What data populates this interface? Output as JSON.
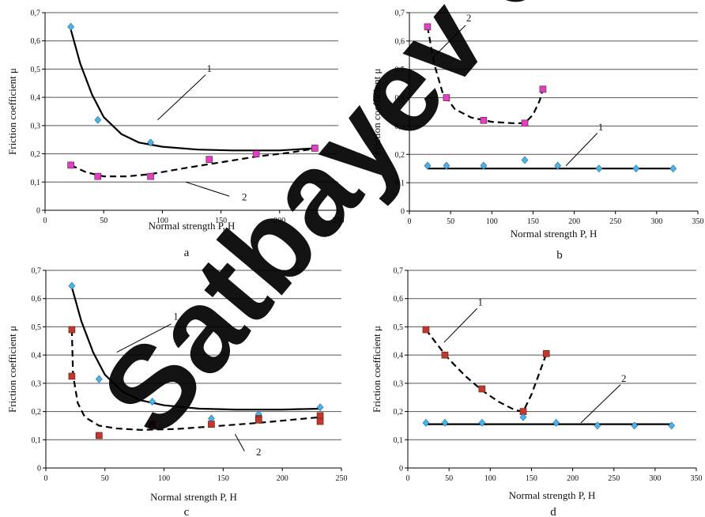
{
  "watermark": "Satbayev University",
  "chart_data": [
    {
      "type": "scatter",
      "panel": "a",
      "xlabel": "Normal strength P, H",
      "ylabel": "Friction coefficient μ",
      "xlim": [
        0,
        250
      ],
      "ylim": [
        0,
        0.7
      ],
      "xticks": [
        0,
        50,
        100,
        150,
        200,
        250
      ],
      "yticks": [
        0,
        0.1,
        0.2,
        0.3,
        0.4,
        0.5,
        0.6,
        0.7
      ],
      "ytick_labels": [
        "0",
        "0,1",
        "0,2",
        "0,3",
        "0,4",
        "0,5",
        "0,6",
        "0,7"
      ],
      "grid": "horizontal",
      "series": [
        {
          "name": "1",
          "marker": "diamond",
          "color": "#4db3e6",
          "line": "solid",
          "points": [
            [
              22,
              0.65
            ],
            [
              45,
              0.32
            ],
            [
              90,
              0.24
            ],
            [
              230,
              0.22
            ]
          ],
          "trend": [
            [
              22,
              0.64
            ],
            [
              30,
              0.52
            ],
            [
              40,
              0.41
            ],
            [
              50,
              0.33
            ],
            [
              65,
              0.27
            ],
            [
              80,
              0.24
            ],
            [
              100,
              0.225
            ],
            [
              130,
              0.215
            ],
            [
              160,
              0.212
            ],
            [
              200,
              0.212
            ],
            [
              232,
              0.22
            ]
          ]
        },
        {
          "name": "2",
          "marker": "square",
          "color": "#e040c8",
          "line": "dashed",
          "points": [
            [
              22,
              0.16
            ],
            [
              45,
              0.12
            ],
            [
              90,
              0.12
            ],
            [
              140,
              0.18
            ],
            [
              180,
              0.2
            ],
            [
              230,
              0.22
            ]
          ],
          "trend": [
            [
              22,
              0.16
            ],
            [
              35,
              0.135
            ],
            [
              50,
              0.12
            ],
            [
              70,
              0.12
            ],
            [
              90,
              0.128
            ],
            [
              120,
              0.15
            ],
            [
              150,
              0.17
            ],
            [
              180,
              0.19
            ],
            [
              210,
              0.205
            ],
            [
              232,
              0.22
            ]
          ]
        }
      ],
      "curve_labels": [
        {
          "text": "1",
          "x": 140,
          "y": 0.49,
          "lx1": 137,
          "ly1": 0.48,
          "lx2": 96,
          "ly2": 0.32
        },
        {
          "text": "2",
          "x": 170,
          "y": 0.035,
          "lx1": 157,
          "ly1": 0.05,
          "lx2": 120,
          "ly2": 0.1
        }
      ]
    },
    {
      "type": "scatter",
      "panel": "b",
      "xlabel": "Normal strength P, H",
      "ylabel": "Friction coefficient μ",
      "xlim": [
        0,
        350
      ],
      "ylim": [
        0,
        0.7
      ],
      "xticks": [
        0,
        50,
        100,
        150,
        200,
        250,
        300,
        350
      ],
      "yticks": [
        0,
        0.1,
        0.2,
        0.3,
        0.4,
        0.5,
        0.6,
        0.7
      ],
      "ytick_labels": [
        "0",
        "0,1",
        "0,2",
        "0,3",
        "0,4",
        "0,5",
        "0,6",
        "0,7"
      ],
      "grid": "horizontal",
      "series": [
        {
          "name": "1",
          "marker": "diamond",
          "color": "#4db3e6",
          "line": "solid",
          "points": [
            [
              22,
              0.16
            ],
            [
              45,
              0.16
            ],
            [
              90,
              0.16
            ],
            [
              140,
              0.18
            ],
            [
              180,
              0.16
            ],
            [
              230,
              0.15
            ],
            [
              275,
              0.15
            ],
            [
              320,
              0.15
            ]
          ],
          "trend": [
            [
              22,
              0.15
            ],
            [
              320,
              0.15
            ]
          ]
        },
        {
          "name": "2",
          "marker": "square",
          "color": "#e040c8",
          "line": "dashed",
          "points": [
            [
              22,
              0.65
            ],
            [
              45,
              0.4
            ],
            [
              90,
              0.32
            ],
            [
              140,
              0.31
            ],
            [
              162,
              0.43
            ]
          ],
          "trend": [
            [
              22,
              0.65
            ],
            [
              30,
              0.52
            ],
            [
              40,
              0.42
            ],
            [
              55,
              0.36
            ],
            [
              75,
              0.33
            ],
            [
              100,
              0.315
            ],
            [
              125,
              0.31
            ],
            [
              140,
              0.31
            ],
            [
              150,
              0.34
            ],
            [
              158,
              0.39
            ],
            [
              162,
              0.43
            ]
          ]
        }
      ],
      "curve_labels": [
        {
          "text": "2",
          "x": 72,
          "y": 0.67,
          "lx1": 68,
          "ly1": 0.655,
          "lx2": 28,
          "ly2": 0.54
        },
        {
          "text": "1",
          "x": 232,
          "y": 0.285,
          "lx1": 228,
          "ly1": 0.275,
          "lx2": 190,
          "ly2": 0.16
        }
      ]
    },
    {
      "type": "scatter",
      "panel": "c",
      "xlabel": "Normal strength P, H",
      "ylabel": "Friction coefficient μ",
      "xlim": [
        0,
        250
      ],
      "ylim": [
        0,
        0.7
      ],
      "xticks": [
        0,
        50,
        100,
        150,
        200,
        250
      ],
      "yticks": [
        0,
        0.1,
        0.2,
        0.3,
        0.4,
        0.5,
        0.6,
        0.7
      ],
      "ytick_labels": [
        "0",
        "0,1",
        "0,2",
        "0,3",
        "0,4",
        "0,5",
        "0,6",
        "0,7"
      ],
      "grid": "horizontal",
      "series": [
        {
          "name": "1",
          "marker": "diamond",
          "color": "#4db3e6",
          "line": "solid",
          "points": [
            [
              22,
              0.645
            ],
            [
              45,
              0.315
            ],
            [
              90,
              0.235
            ],
            [
              140,
              0.175
            ],
            [
              180,
              0.19
            ],
            [
              232,
              0.215
            ]
          ],
          "trend": [
            [
              22,
              0.64
            ],
            [
              30,
              0.52
            ],
            [
              40,
              0.41
            ],
            [
              50,
              0.33
            ],
            [
              65,
              0.27
            ],
            [
              80,
              0.24
            ],
            [
              100,
              0.222
            ],
            [
              130,
              0.21
            ],
            [
              160,
              0.207
            ],
            [
              200,
              0.207
            ],
            [
              232,
              0.21
            ]
          ]
        },
        {
          "name": "2",
          "marker": "square",
          "color": "#c0392b",
          "line": "dashed",
          "points": [
            [
              22,
              0.49
            ],
            [
              22,
              0.325
            ],
            [
              45,
              0.115
            ],
            [
              90,
              0.155
            ],
            [
              140,
              0.155
            ],
            [
              180,
              0.175
            ],
            [
              180,
              0.17
            ],
            [
              232,
              0.185
            ],
            [
              232,
              0.165
            ]
          ],
          "trend": [
            [
              22,
              0.49
            ],
            [
              23,
              0.33
            ],
            [
              27,
              0.23
            ],
            [
              33,
              0.18
            ],
            [
              45,
              0.15
            ],
            [
              60,
              0.14
            ],
            [
              80,
              0.135
            ],
            [
              110,
              0.138
            ],
            [
              140,
              0.147
            ],
            [
              180,
              0.16
            ],
            [
              232,
              0.18
            ]
          ]
        }
      ],
      "curve_labels": [
        {
          "text": "1",
          "x": 110,
          "y": 0.525,
          "lx1": 106,
          "ly1": 0.51,
          "lx2": 60,
          "ly2": 0.41
        },
        {
          "text": "2",
          "x": 180,
          "y": 0.045,
          "lx1": 168,
          "ly1": 0.06,
          "lx2": 160,
          "ly2": 0.12
        }
      ]
    },
    {
      "type": "scatter",
      "panel": "d",
      "xlabel": "Normal strength P, H",
      "ylabel": "Friction coefficient μ",
      "xlim": [
        0,
        350
      ],
      "ylim": [
        0,
        0.7
      ],
      "xticks": [
        0,
        50,
        100,
        150,
        200,
        250,
        300,
        350
      ],
      "yticks": [
        0,
        0.1,
        0.2,
        0.3,
        0.4,
        0.5,
        0.6,
        0.7
      ],
      "ytick_labels": [
        "0",
        "0,1",
        "0,2",
        "0,3",
        "0,4",
        "0,5",
        "0,6",
        "0,7"
      ],
      "grid": "horizontal",
      "series": [
        {
          "name": "1",
          "marker": "square",
          "color": "#c0392b",
          "line": "dashed",
          "points": [
            [
              22,
              0.49
            ],
            [
              45,
              0.4
            ],
            [
              90,
              0.28
            ],
            [
              140,
              0.2
            ],
            [
              168,
              0.405
            ]
          ],
          "trend": [
            [
              22,
              0.49
            ],
            [
              35,
              0.44
            ],
            [
              50,
              0.385
            ],
            [
              70,
              0.325
            ],
            [
              90,
              0.275
            ],
            [
              110,
              0.235
            ],
            [
              130,
              0.205
            ],
            [
              140,
              0.2
            ],
            [
              150,
              0.26
            ],
            [
              160,
              0.34
            ],
            [
              168,
              0.405
            ]
          ]
        },
        {
          "name": "2",
          "marker": "diamond",
          "color": "#4db3e6",
          "line": "solid",
          "points": [
            [
              22,
              0.16
            ],
            [
              45,
              0.16
            ],
            [
              90,
              0.16
            ],
            [
              140,
              0.18
            ],
            [
              180,
              0.16
            ],
            [
              230,
              0.15
            ],
            [
              275,
              0.15
            ],
            [
              320,
              0.15
            ]
          ],
          "trend": [
            [
              22,
              0.155
            ],
            [
              320,
              0.155
            ]
          ]
        }
      ],
      "curve_labels": [
        {
          "text": "1",
          "x": 88,
          "y": 0.575,
          "lx1": 84,
          "ly1": 0.565,
          "lx2": 44,
          "ly2": 0.445
        },
        {
          "text": "2",
          "x": 262,
          "y": 0.305,
          "lx1": 258,
          "ly1": 0.295,
          "lx2": 210,
          "ly2": 0.16
        }
      ]
    }
  ],
  "panel_letters": [
    "a",
    "b",
    "c",
    "d"
  ]
}
